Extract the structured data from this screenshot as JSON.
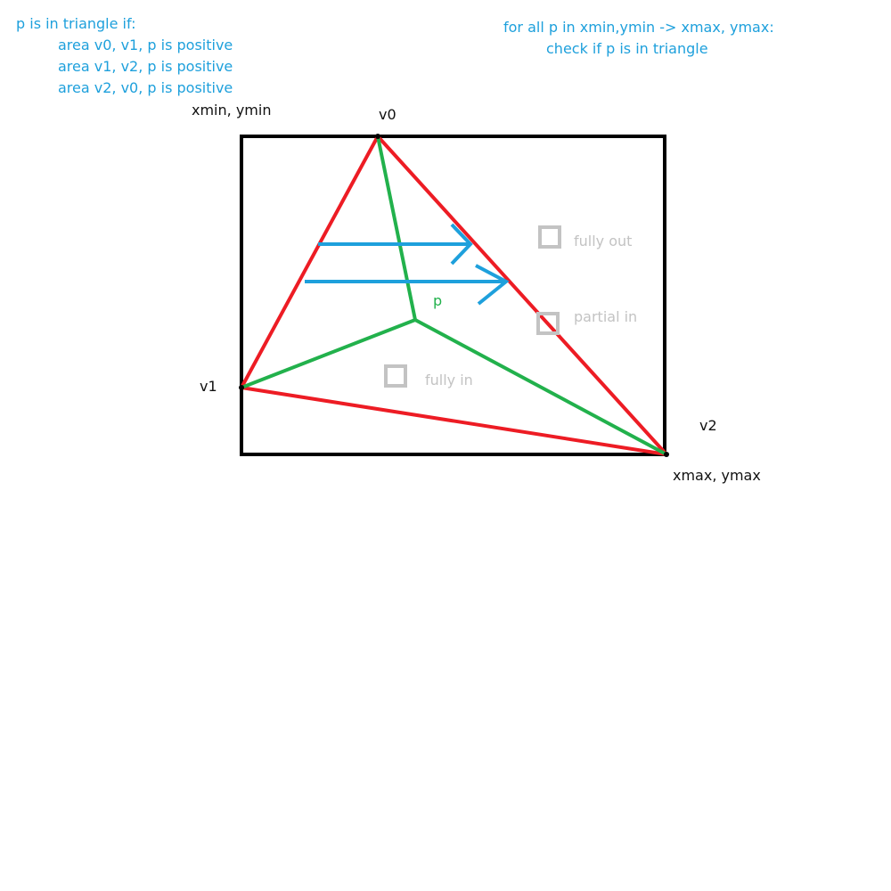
{
  "condition": {
    "heading": "p is in triangle if:",
    "lines": [
      "area v0, v1, p is positive",
      "area v1, v2, p is positive",
      "area v2, v0, p is positive"
    ]
  },
  "loop_note": {
    "line1": "for all p in xmin,ymin -> xmax, ymax:",
    "line2": "check if p is in triangle"
  },
  "bounding_box": {
    "min_label": "xmin, ymin",
    "max_label": "xmax, ymax"
  },
  "vertices": {
    "v0": "v0",
    "v1": "v1",
    "v2": "v2"
  },
  "point_label": "p",
  "tiles": {
    "fully_out": "fully out",
    "partial_in": "partial in",
    "fully_in": "fully in"
  },
  "colors": {
    "edge": "#ed1c24",
    "barycentric": "#22b14c",
    "scan_arrow": "#1ea0dc",
    "box": "#000000",
    "tile": "#c3c3c3",
    "note": "#1ea0dc"
  },
  "icons": {
    "scan_arrow": "right-arrow-icon",
    "tile": "square-outline-icon"
  }
}
